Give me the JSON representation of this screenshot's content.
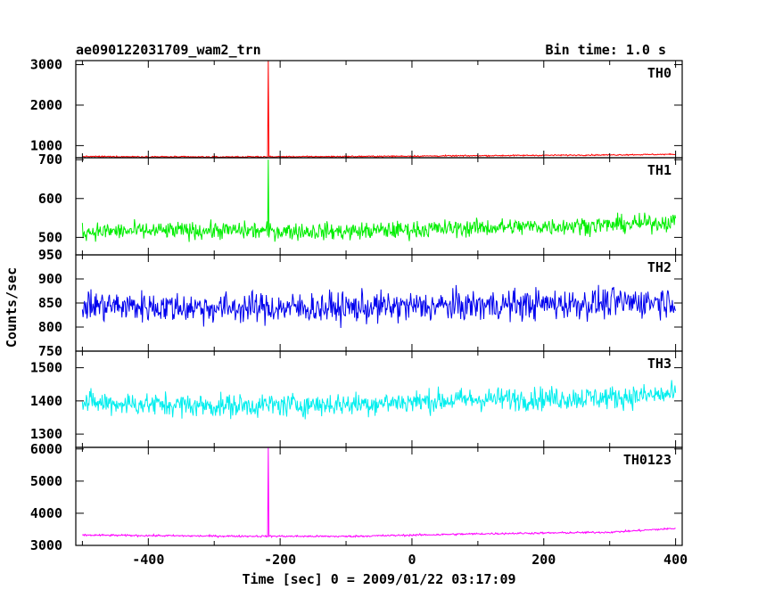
{
  "chart_data": {
    "type": "line",
    "title": "ae090122031709_wam2_trn",
    "subtitle": "Bin time: 1.0 s",
    "xlabel": "Time [sec] 0 = 2009/01/22 03:17:09",
    "ylabel": "Counts/sec",
    "xlim": [
      -510,
      410
    ],
    "xticks": [
      -400,
      -200,
      0,
      200,
      400
    ],
    "grid": false,
    "x_range": [
      -500,
      400
    ],
    "series": [
      {
        "name": "TH0",
        "color": "#ff0000",
        "ylim": [
          700,
          3100
        ],
        "yticks": [
          1000,
          2000,
          3000
        ],
        "baseline": [
          [
            -500,
            730
          ],
          [
            -300,
            720
          ],
          [
            -100,
            730
          ],
          [
            100,
            750
          ],
          [
            300,
            770
          ],
          [
            400,
            785
          ]
        ],
        "noise": 25,
        "spike": {
          "x": -218,
          "y": 3100
        }
      },
      {
        "name": "TH1",
        "color": "#00ee00",
        "ylim": [
          455,
          705
        ],
        "yticks": [
          500,
          600,
          700
        ],
        "baseline": [
          [
            -500,
            515
          ],
          [
            -300,
            518
          ],
          [
            -100,
            515
          ],
          [
            100,
            525
          ],
          [
            300,
            532
          ],
          [
            400,
            540
          ]
        ],
        "noise": 35,
        "spike": {
          "x": -218,
          "y": 700
        }
      },
      {
        "name": "TH2",
        "color": "#0000ee",
        "ylim": [
          750,
          950
        ],
        "yticks": [
          750,
          800,
          850,
          900,
          950
        ],
        "baseline": [
          [
            -500,
            845
          ],
          [
            -300,
            840
          ],
          [
            -100,
            840
          ],
          [
            100,
            845
          ],
          [
            300,
            850
          ],
          [
            400,
            855
          ]
        ],
        "noise": 50
      },
      {
        "name": "TH3",
        "color": "#00eeee",
        "ylim": [
          1260,
          1550
        ],
        "yticks": [
          1300,
          1400,
          1500
        ],
        "baseline": [
          [
            -500,
            1395
          ],
          [
            -300,
            1385
          ],
          [
            -100,
            1390
          ],
          [
            100,
            1405
          ],
          [
            300,
            1410
          ],
          [
            400,
            1420
          ]
        ],
        "noise": 55
      },
      {
        "name": "TH0123",
        "color": "#ff00ff",
        "ylim": [
          3000,
          6050
        ],
        "yticks": [
          3000,
          4000,
          5000,
          6000
        ],
        "baseline": [
          [
            -500,
            3320
          ],
          [
            -300,
            3290
          ],
          [
            -100,
            3280
          ],
          [
            100,
            3360
          ],
          [
            300,
            3410
          ],
          [
            400,
            3530
          ]
        ],
        "noise": 45,
        "spike": {
          "x": -218,
          "y": 6050
        }
      }
    ]
  }
}
